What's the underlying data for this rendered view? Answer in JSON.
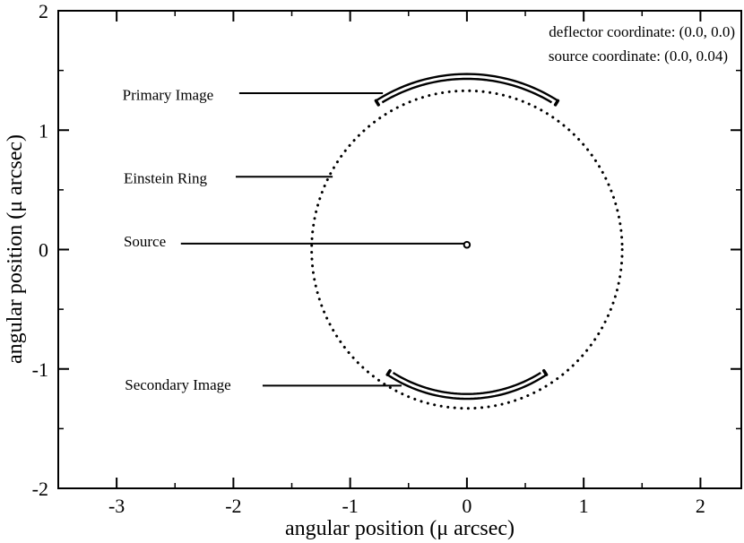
{
  "chart_data": {
    "type": "scatter",
    "title": "",
    "xlabel": "angular position (μ arcsec)",
    "ylabel": "angular position (μ arcsec)",
    "xlim": [
      -3.5,
      2.35
    ],
    "ylim": [
      -2,
      2
    ],
    "x_ticks": [
      -3,
      -2,
      -1,
      0,
      1,
      2
    ],
    "y_ticks": [
      -2,
      -1,
      0,
      1,
      2
    ],
    "grid": false,
    "info_lines": [
      "deflector coordinate: (0.0, 0.0)",
      "source coordinate: (0.0, 0.04)"
    ],
    "einstein_ring": {
      "center": [
        0.0,
        0.0
      ],
      "radius": 1.33,
      "style": "dotted"
    },
    "source": {
      "center": [
        0.0,
        0.04
      ],
      "radius": 0.025
    },
    "primary_image": {
      "center": [
        0.0,
        0.0
      ],
      "r_outer": 1.47,
      "r_inner": 1.43,
      "angle_from_deg": 58,
      "angle_to_deg": 122
    },
    "secondary_image": {
      "center": [
        0.0,
        0.0
      ],
      "r_outer": 1.25,
      "r_inner": 1.21,
      "angle_from_deg": 237,
      "angle_to_deg": 303
    },
    "annotations": [
      {
        "text": "Primary Image",
        "text_at": [
          -2.95,
          1.3
        ],
        "line_from": [
          -1.95,
          1.31
        ],
        "line_to": [
          -0.72,
          1.31
        ]
      },
      {
        "text": "Einstein Ring",
        "text_at": [
          -2.94,
          0.6
        ],
        "line_from": [
          -1.98,
          0.61
        ],
        "line_to": [
          -1.15,
          0.61
        ]
      },
      {
        "text": "Source",
        "text_at": [
          -2.94,
          0.07
        ],
        "line_from": [
          -2.45,
          0.05
        ],
        "line_to": [
          -0.02,
          0.05
        ]
      },
      {
        "text": "Secondary Image",
        "text_at": [
          -2.93,
          -1.13
        ],
        "line_from": [
          -1.75,
          -1.14
        ],
        "line_to": [
          -0.56,
          -1.14
        ]
      }
    ]
  }
}
